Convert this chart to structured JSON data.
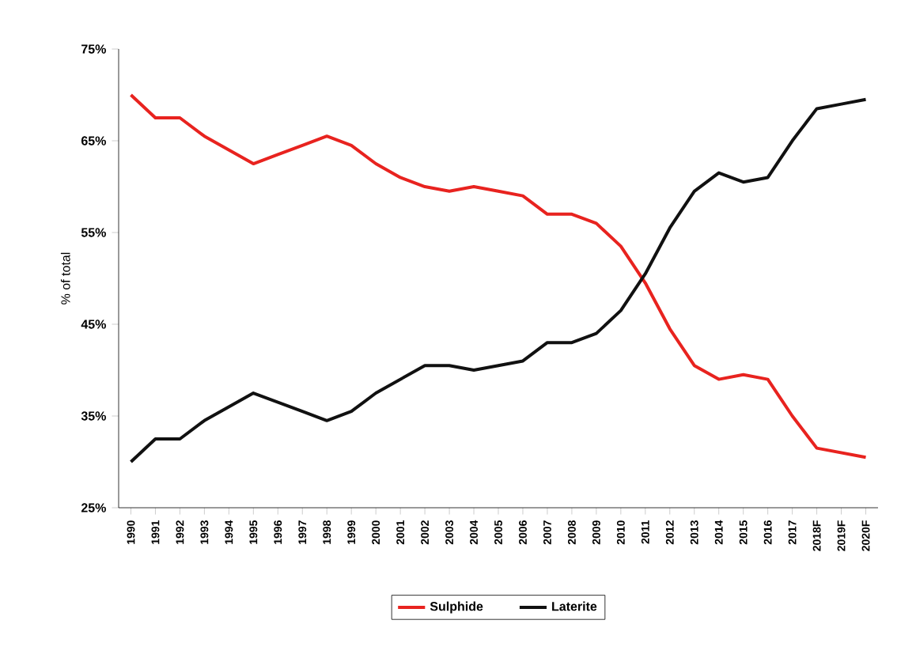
{
  "chart_data": {
    "type": "line",
    "ylabel": "% of total",
    "categories": [
      "1990",
      "1991",
      "1992",
      "1993",
      "1994",
      "1995",
      "1996",
      "1997",
      "1998",
      "1999",
      "2000",
      "2001",
      "2002",
      "2003",
      "2004",
      "2005",
      "2006",
      "2007",
      "2008",
      "2009",
      "2010",
      "2011",
      "2012",
      "2013",
      "2014",
      "2015",
      "2016",
      "2017",
      "2018F",
      "2019F",
      "2020F"
    ],
    "series": [
      {
        "name": "Sulphide",
        "color": "#e8231f",
        "values": [
          70,
          67.5,
          67.5,
          65.5,
          64,
          62.5,
          63.5,
          64.5,
          65.5,
          64.5,
          62.5,
          61,
          60,
          59.5,
          60,
          59.5,
          59,
          57,
          57,
          56,
          53.5,
          49.5,
          44.5,
          40.5,
          39,
          39.5,
          39,
          35,
          31.5,
          31,
          30.5
        ]
      },
      {
        "name": "Laterite",
        "color": "#111111",
        "values": [
          30,
          32.5,
          32.5,
          34.5,
          36,
          37.5,
          36.5,
          35.5,
          34.5,
          35.5,
          37.5,
          39,
          40.5,
          40.5,
          40,
          40.5,
          41,
          43,
          43,
          44,
          46.5,
          50.5,
          55.5,
          59.5,
          61.5,
          60.5,
          61,
          65,
          68.5,
          69,
          69.5
        ]
      }
    ],
    "ylim": [
      25,
      75
    ],
    "yticks": [
      {
        "value": 25,
        "label": "25%"
      },
      {
        "value": 35,
        "label": "35%"
      },
      {
        "value": 45,
        "label": "45%"
      },
      {
        "value": 55,
        "label": "55%"
      },
      {
        "value": 65,
        "label": "65%"
      },
      {
        "value": 75,
        "label": "75%"
      }
    ],
    "grid": false,
    "legend": "bottom",
    "line_style": "solid",
    "marker": "none"
  }
}
